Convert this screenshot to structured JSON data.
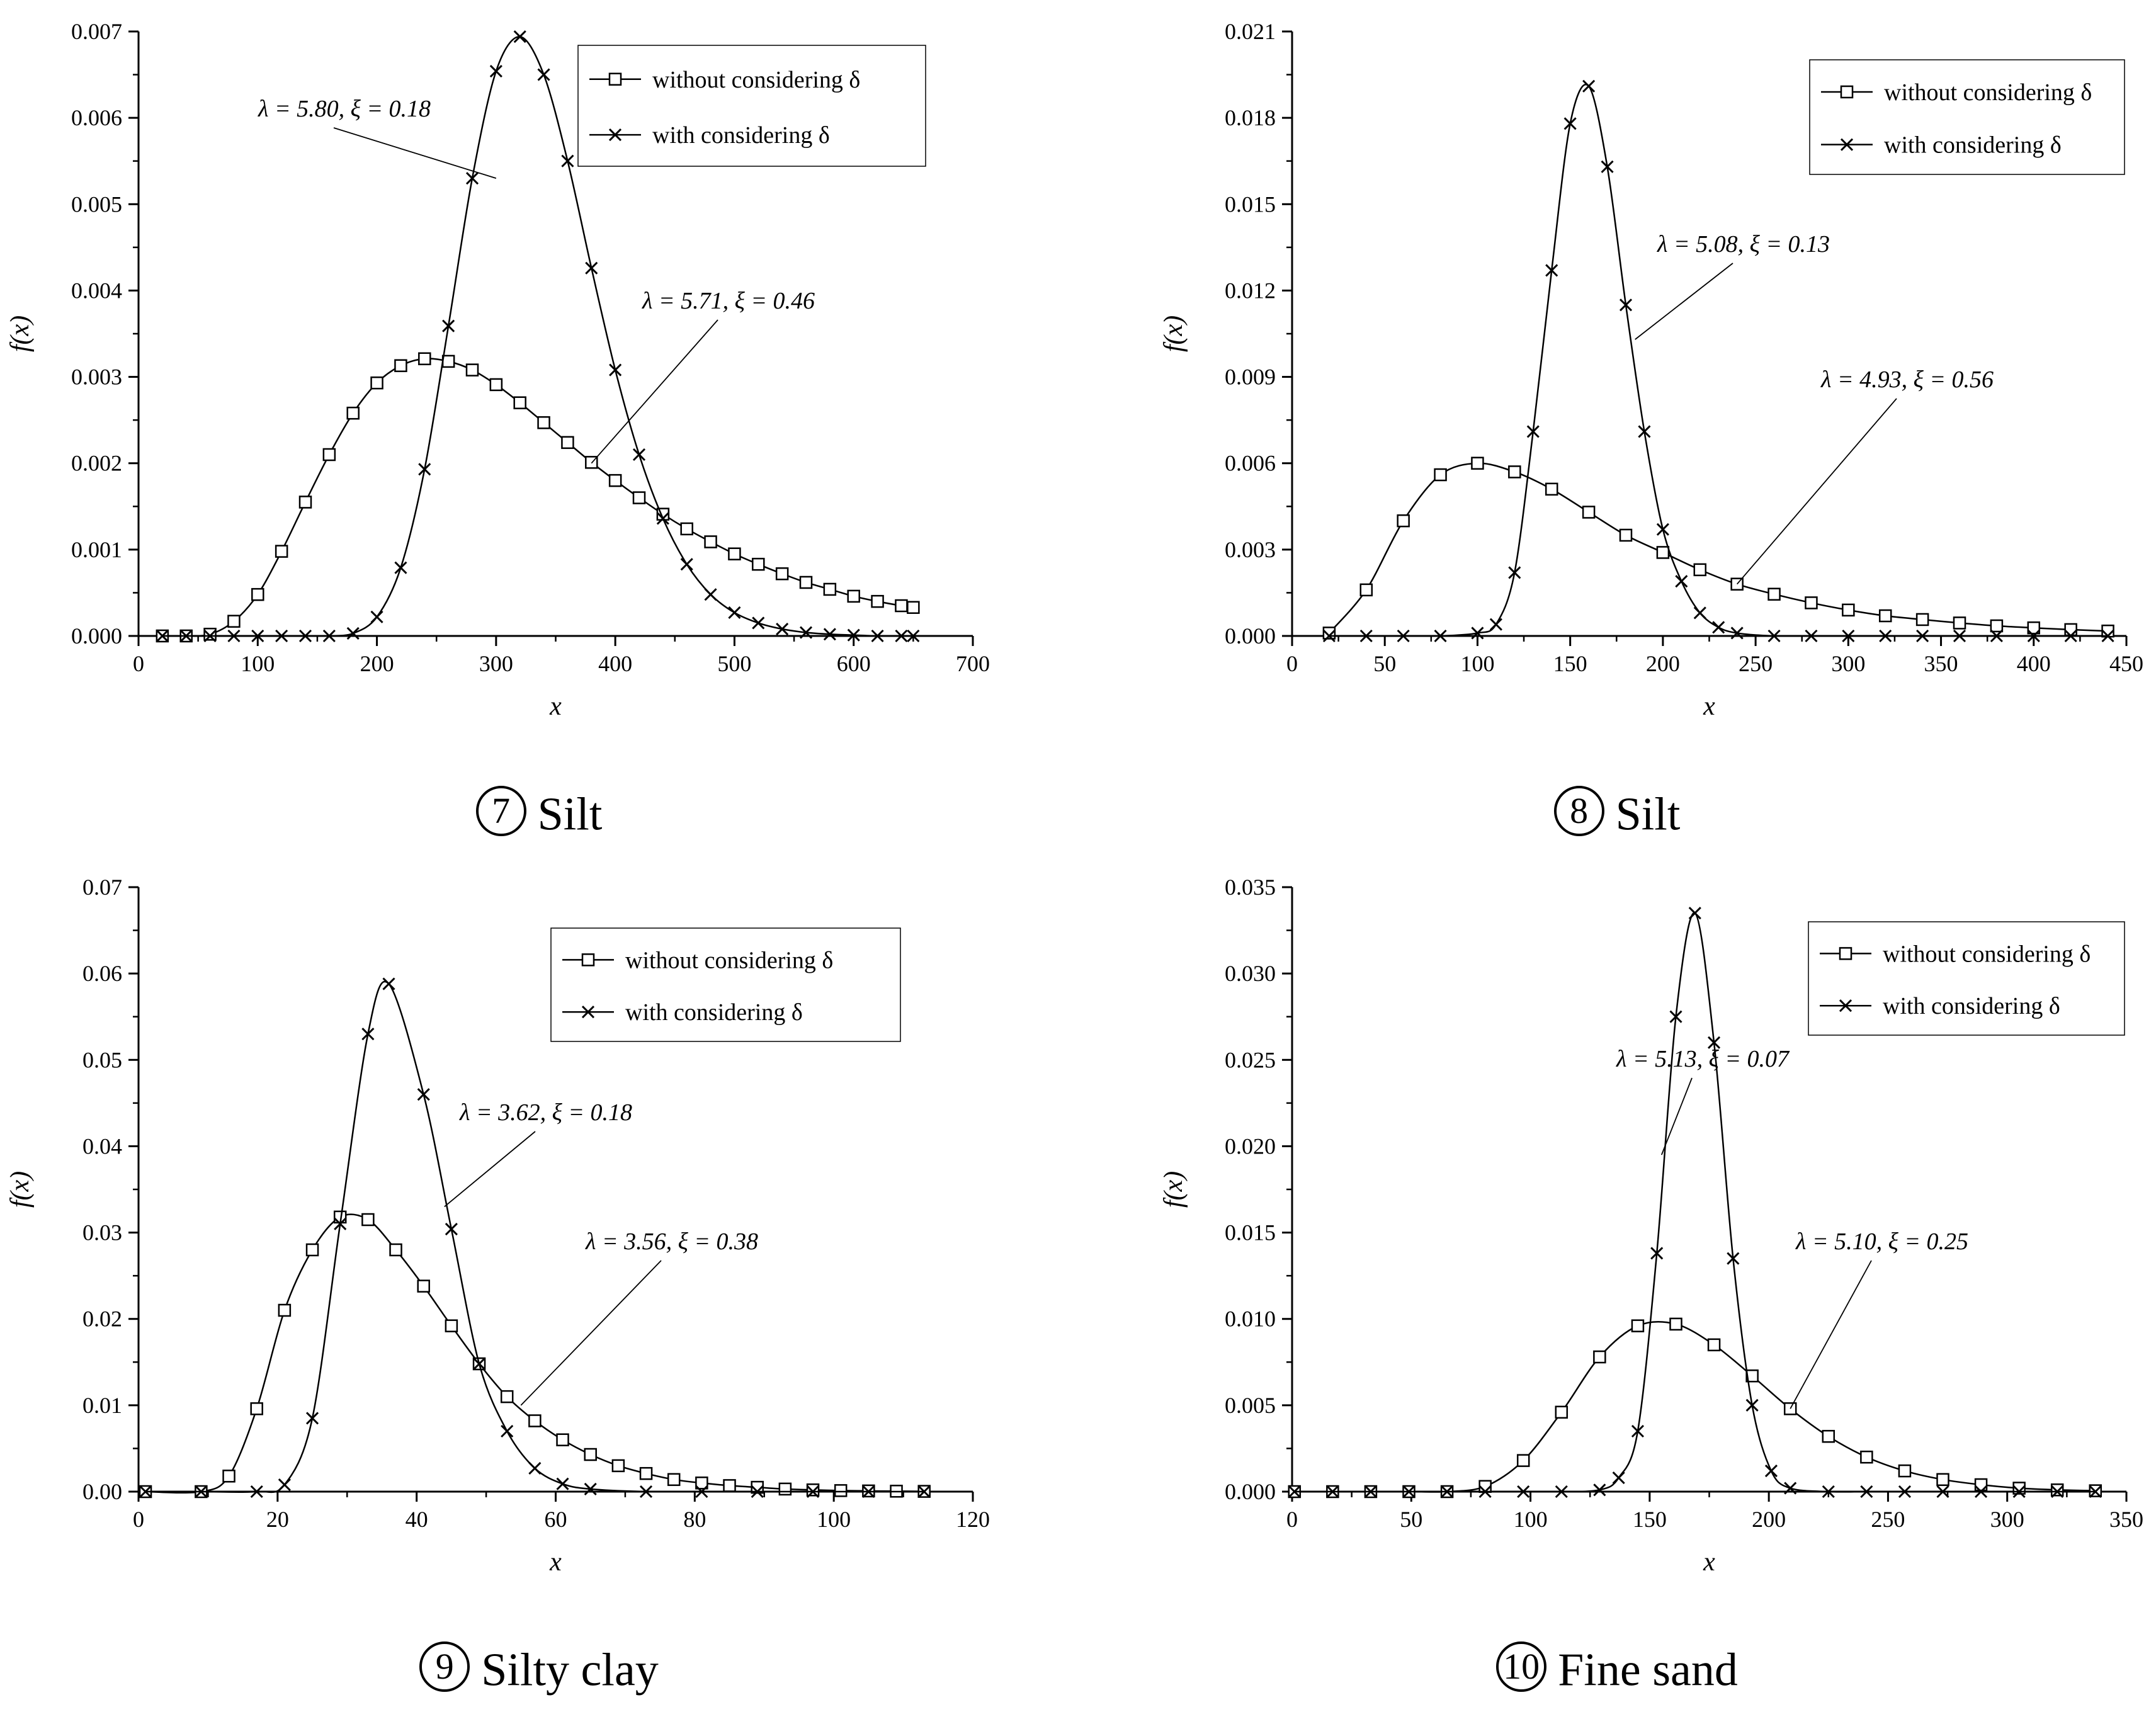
{
  "chart_data": [
    {
      "type": "line",
      "caption_num": "7",
      "caption_text": "Silt",
      "xlabel": "x",
      "ylabel": "f(x)",
      "xlim": [
        0,
        700
      ],
      "ylim": [
        0,
        0.007
      ],
      "xticks": [
        "0",
        "100",
        "200",
        "300",
        "400",
        "500",
        "600",
        "700"
      ],
      "yticks": [
        "0.000",
        "0.001",
        "0.002",
        "0.003",
        "0.004",
        "0.005",
        "0.006",
        "0.007"
      ],
      "xtick_values": [
        0,
        100,
        200,
        300,
        400,
        500,
        600,
        700
      ],
      "ytick_values": [
        0,
        0.001,
        0.002,
        0.003,
        0.004,
        0.005,
        0.006,
        0.007
      ],
      "legend_position": "top-right",
      "series": [
        {
          "name": "without considering δ",
          "marker": "square",
          "x": [
            20,
            40,
            60,
            80,
            100,
            120,
            140,
            160,
            180,
            200,
            220,
            240,
            260,
            280,
            300,
            320,
            340,
            360,
            380,
            400,
            420,
            440,
            460,
            480,
            500,
            520,
            540,
            560,
            580,
            600,
            620,
            640,
            650
          ],
          "values": [
            0,
            0,
            2e-05,
            0.00017,
            0.00048,
            0.00098,
            0.00155,
            0.0021,
            0.00258,
            0.00293,
            0.00313,
            0.00321,
            0.00318,
            0.00308,
            0.00291,
            0.0027,
            0.00247,
            0.00224,
            0.00201,
            0.0018,
            0.0016,
            0.00141,
            0.00124,
            0.00109,
            0.00095,
            0.00083,
            0.00072,
            0.00062,
            0.00054,
            0.00046,
            0.0004,
            0.00035,
            0.00033
          ]
        },
        {
          "name": "with considering δ",
          "marker": "cross",
          "x": [
            20,
            40,
            60,
            80,
            100,
            120,
            140,
            160,
            180,
            200,
            220,
            240,
            260,
            280,
            300,
            320,
            340,
            360,
            380,
            400,
            420,
            440,
            460,
            480,
            500,
            520,
            540,
            560,
            580,
            600,
            620,
            640,
            650
          ],
          "values": [
            0,
            0,
            0,
            0,
            0,
            0,
            0,
            0,
            3e-05,
            0.00022,
            0.00079,
            0.00193,
            0.00359,
            0.0053,
            0.00654,
            0.00694,
            0.0065,
            0.0055,
            0.00426,
            0.00308,
            0.0021,
            0.00136,
            0.00083,
            0.00048,
            0.00027,
            0.00015,
            8e-05,
            4e-05,
            2e-05,
            1e-05,
            0,
            0,
            0
          ]
        }
      ],
      "annotations": [
        {
          "text": "λ = 5.80, ξ = 0.18",
          "point_x": 300,
          "point_y": 0.0053
        },
        {
          "text": "λ = 5.71, ξ = 0.46",
          "point_x": 380,
          "point_y": 0.002
        }
      ]
    },
    {
      "type": "line",
      "caption_num": "8",
      "caption_text": "Silt",
      "xlabel": "x",
      "ylabel": "f(x)",
      "xlim": [
        0,
        450
      ],
      "ylim": [
        0,
        0.021
      ],
      "xticks": [
        "0",
        "50",
        "100",
        "150",
        "200",
        "250",
        "300",
        "350",
        "400",
        "450"
      ],
      "yticks": [
        "0.000",
        "0.003",
        "0.006",
        "0.009",
        "0.012",
        "0.015",
        "0.018",
        "0.021"
      ],
      "xtick_values": [
        0,
        50,
        100,
        150,
        200,
        250,
        300,
        350,
        400,
        450
      ],
      "ytick_values": [
        0,
        0.003,
        0.006,
        0.009,
        0.012,
        0.015,
        0.018,
        0.021
      ],
      "legend_position": "top-right",
      "series": [
        {
          "name": "without considering δ",
          "marker": "square",
          "x": [
            20,
            40,
            60,
            80,
            100,
            120,
            140,
            160,
            180,
            200,
            220,
            240,
            260,
            280,
            300,
            320,
            340,
            360,
            380,
            400,
            420,
            440
          ],
          "values": [
            0.0001,
            0.0016,
            0.004,
            0.0056,
            0.006,
            0.0057,
            0.0051,
            0.0043,
            0.0035,
            0.0029,
            0.0023,
            0.0018,
            0.00145,
            0.00115,
            0.0009,
            0.0007,
            0.00057,
            0.00045,
            0.00035,
            0.00028,
            0.00022,
            0.00017
          ]
        },
        {
          "name": "with considering δ",
          "marker": "cross",
          "x": [
            20,
            40,
            60,
            80,
            100,
            110,
            120,
            130,
            140,
            150,
            160,
            170,
            180,
            190,
            200,
            210,
            220,
            230,
            240,
            260,
            280,
            300,
            320,
            340,
            360,
            380,
            400,
            420,
            440
          ],
          "values": [
            0,
            0,
            0,
            0,
            0.0001,
            0.0004,
            0.0022,
            0.0071,
            0.0127,
            0.0178,
            0.0191,
            0.0163,
            0.0115,
            0.0071,
            0.0037,
            0.0019,
            0.0008,
            0.0003,
            0.0001,
            0,
            0,
            0,
            0,
            0,
            0,
            0,
            0,
            0,
            0
          ]
        }
      ],
      "annotations": [
        {
          "text": "λ = 5.08, ξ = 0.13",
          "point_x": 185,
          "point_y": 0.0103
        },
        {
          "text": "λ = 4.93, ξ = 0.56",
          "point_x": 240,
          "point_y": 0.0018
        }
      ]
    },
    {
      "type": "line",
      "caption_num": "9",
      "caption_text": "Silty clay",
      "xlabel": "x",
      "ylabel": "f(x)",
      "xlim": [
        0,
        120
      ],
      "ylim": [
        0,
        0.07
      ],
      "xticks": [
        "0",
        "20",
        "40",
        "60",
        "80",
        "100",
        "120"
      ],
      "yticks": [
        "0.00",
        "0.01",
        "0.02",
        "0.03",
        "0.04",
        "0.05",
        "0.06",
        "0.07"
      ],
      "xtick_values": [
        0,
        20,
        40,
        60,
        80,
        100,
        120
      ],
      "ytick_values": [
        0,
        0.01,
        0.02,
        0.03,
        0.04,
        0.05,
        0.06,
        0.07
      ],
      "legend_position": "top-right",
      "series": [
        {
          "name": "without considering δ",
          "marker": "square",
          "x": [
            1,
            9,
            13,
            17,
            21,
            25,
            29,
            33,
            37,
            41,
            45,
            49,
            53,
            57,
            61,
            65,
            69,
            73,
            77,
            81,
            85,
            89,
            93,
            97,
            101,
            105,
            109,
            113
          ],
          "values": [
            0,
            0,
            0.0018,
            0.0096,
            0.021,
            0.028,
            0.0318,
            0.0315,
            0.028,
            0.0238,
            0.0192,
            0.0148,
            0.011,
            0.0082,
            0.006,
            0.0043,
            0.003,
            0.0021,
            0.0014,
            0.001,
            0.0007,
            0.0005,
            0.0003,
            0.0002,
            0.00012,
            8e-05,
            5e-05,
            3e-05
          ]
        },
        {
          "name": "with considering δ",
          "marker": "cross",
          "x": [
            1,
            9,
            17,
            21,
            25,
            29,
            33,
            36,
            41,
            45,
            49,
            53,
            57,
            61,
            65,
            73,
            81,
            89,
            97,
            105,
            113
          ],
          "values": [
            0,
            0,
            0,
            0.0008,
            0.0085,
            0.031,
            0.053,
            0.0588,
            0.046,
            0.0304,
            0.0148,
            0.007,
            0.0027,
            0.0009,
            0.0003,
            0,
            0,
            0,
            0,
            0,
            0
          ]
        }
      ],
      "annotations": [
        {
          "text": "λ = 3.62, ξ = 0.18",
          "point_x": 44,
          "point_y": 0.033
        },
        {
          "text": "λ = 3.56, ξ = 0.38",
          "point_x": 55,
          "point_y": 0.01
        }
      ]
    },
    {
      "type": "line",
      "caption_num": "10",
      "caption_text": "Fine sand",
      "xlabel": "x",
      "ylabel": "f(x)",
      "xlim": [
        0,
        350
      ],
      "ylim": [
        0,
        0.035
      ],
      "xticks": [
        "0",
        "50",
        "100",
        "150",
        "200",
        "250",
        "300",
        "350"
      ],
      "yticks": [
        "0.000",
        "0.005",
        "0.010",
        "0.015",
        "0.020",
        "0.025",
        "0.030",
        "0.035"
      ],
      "xtick_values": [
        0,
        50,
        100,
        150,
        200,
        250,
        300,
        350
      ],
      "ytick_values": [
        0,
        0.005,
        0.01,
        0.015,
        0.02,
        0.025,
        0.03,
        0.035
      ],
      "legend_position": "top-right",
      "series": [
        {
          "name": "without considering δ",
          "marker": "square",
          "x": [
            1,
            17,
            33,
            49,
            65,
            81,
            97,
            113,
            129,
            145,
            161,
            177,
            193,
            209,
            225,
            241,
            257,
            273,
            289,
            305,
            321,
            337
          ],
          "values": [
            0,
            0,
            0,
            0,
            0,
            0.0003,
            0.0018,
            0.0046,
            0.0078,
            0.0096,
            0.0097,
            0.0085,
            0.0067,
            0.0048,
            0.0032,
            0.002,
            0.0012,
            0.0007,
            0.0004,
            0.0002,
            0.0001,
            5e-05
          ]
        },
        {
          "name": "with considering δ",
          "marker": "cross",
          "x": [
            1,
            17,
            33,
            49,
            65,
            81,
            97,
            113,
            129,
            137,
            145,
            153,
            161,
            169,
            177,
            185,
            193,
            201,
            209,
            225,
            241,
            257,
            273,
            289,
            305,
            321,
            337
          ],
          "values": [
            0,
            0,
            0,
            0,
            0,
            0,
            0,
            0,
            0.0001,
            0.0008,
            0.0035,
            0.0138,
            0.0275,
            0.0335,
            0.026,
            0.0135,
            0.005,
            0.0012,
            0.0002,
            0,
            0,
            0,
            0,
            0,
            0,
            0,
            0
          ]
        }
      ],
      "annotations": [
        {
          "text": "λ = 5.13, ξ = 0.07",
          "point_x": 155,
          "point_y": 0.0195
        },
        {
          "text": "λ = 5.10, ξ = 0.25",
          "point_x": 209,
          "point_y": 0.0048
        }
      ]
    }
  ]
}
